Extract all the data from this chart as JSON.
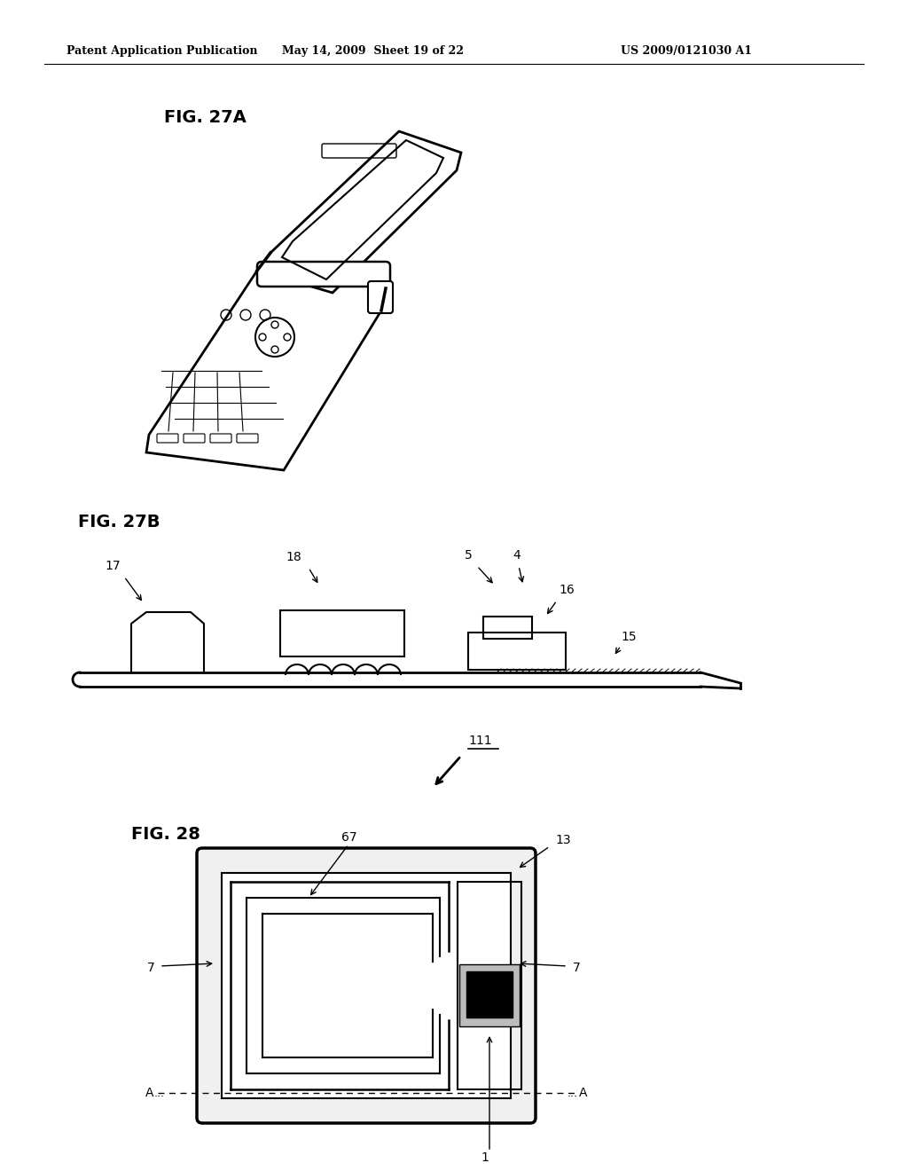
{
  "background_color": "#ffffff",
  "header_left": "Patent Application Publication",
  "header_center": "May 14, 2009  Sheet 19 of 22",
  "header_right": "US 2009/0121030 A1",
  "fig27a_label": "FIG. 27A",
  "fig27b_label": "FIG. 27B",
  "fig28_label": "FIG. 28"
}
